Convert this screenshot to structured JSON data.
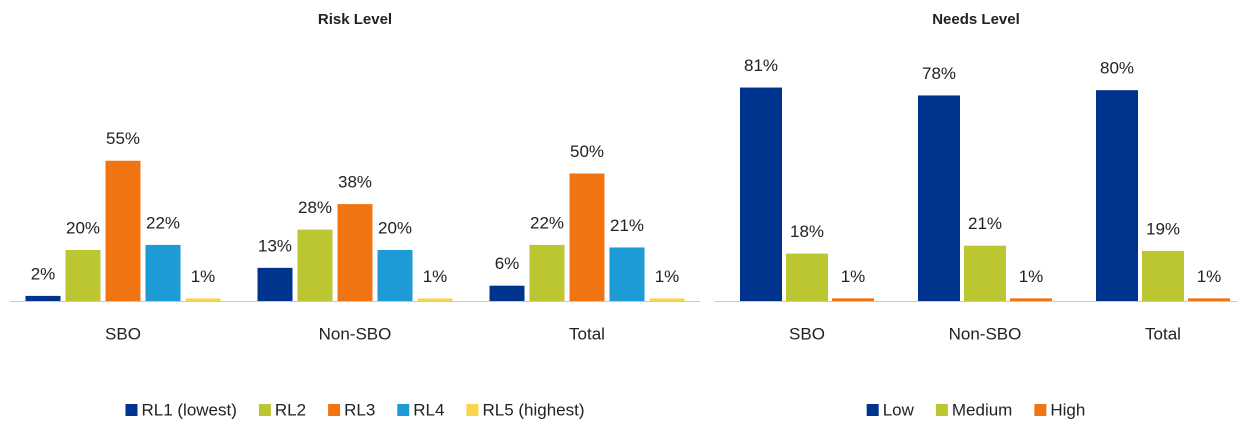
{
  "chart_data": [
    {
      "type": "bar",
      "title": "Risk Level",
      "categories": [
        "SBO",
        "Non-SBO",
        "Total"
      ],
      "series": [
        {
          "name": "RL1 (lowest)",
          "color": "#00338d",
          "values": [
            2,
            13,
            6
          ],
          "value_labels": [
            "2%",
            "13%",
            "6%"
          ]
        },
        {
          "name": "RL2",
          "color": "#bcc630",
          "values": [
            20,
            28,
            22
          ],
          "value_labels": [
            "20%",
            "28%",
            "22%"
          ]
        },
        {
          "name": "RL3",
          "color": "#f07412",
          "values": [
            55,
            38,
            50
          ],
          "value_labels": [
            "55%",
            "38%",
            "50%"
          ]
        },
        {
          "name": "RL4",
          "color": "#1e9ad6",
          "values": [
            22,
            20,
            21
          ],
          "value_labels": [
            "22%",
            "20%",
            "21%"
          ]
        },
        {
          "name": "RL5 (highest)",
          "color": "#f9d548",
          "values": [
            1,
            1,
            1
          ],
          "value_labels": [
            "1%",
            "1%",
            "1%"
          ]
        }
      ],
      "ylim": [
        0,
        60
      ],
      "legend": "bottom"
    },
    {
      "type": "bar",
      "title": "Needs Level",
      "categories": [
        "SBO",
        "Non-SBO",
        "Total"
      ],
      "series": [
        {
          "name": "Low",
          "color": "#00338d",
          "values": [
            81,
            78,
            80
          ],
          "value_labels": [
            "81%",
            "78%",
            "80%"
          ]
        },
        {
          "name": "Medium",
          "color": "#bcc630",
          "values": [
            18,
            21,
            19
          ],
          "value_labels": [
            "18%",
            "21%",
            "19%"
          ]
        },
        {
          "name": "High",
          "color": "#f07412",
          "values": [
            1,
            1,
            1
          ],
          "value_labels": [
            "1%",
            "1%",
            "1%"
          ]
        }
      ],
      "ylim": [
        0,
        85
      ],
      "legend": "bottom"
    }
  ]
}
